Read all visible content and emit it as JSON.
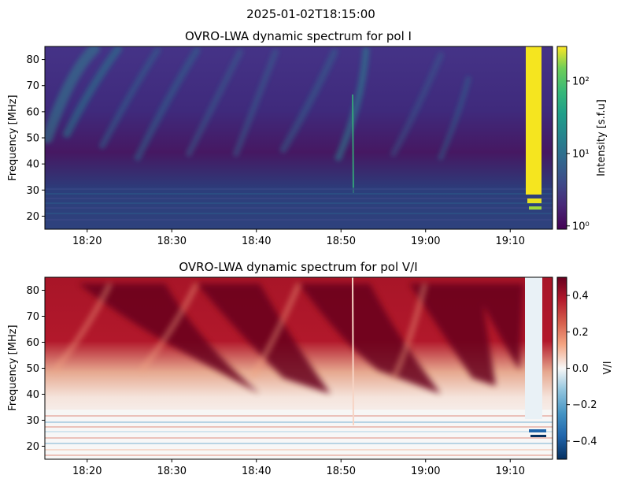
{
  "figure": {
    "suptitle": "2025-01-02T18:15:00"
  },
  "chart_data": [
    {
      "type": "heatmap",
      "title": "OVRO-LWA dynamic spectrum for pol I",
      "xlabel": "",
      "ylabel": "Frequency [MHz]",
      "x_range": [
        "18:15",
        "19:15"
      ],
      "xticks": [
        "18:20",
        "18:30",
        "18:40",
        "18:50",
        "19:00",
        "19:10"
      ],
      "ylim": [
        15,
        85
      ],
      "yticks": [
        20,
        30,
        40,
        50,
        60,
        70,
        80
      ],
      "colormap": "viridis",
      "colorbar": {
        "label": "Intensity [s.f.u]",
        "scale": "log",
        "range": [
          0.9,
          300
        ],
        "ticks": [
          "10⁰",
          "10¹",
          "10²"
        ]
      }
    },
    {
      "type": "heatmap",
      "title": "OVRO-LWA dynamic spectrum for pol V/I",
      "xlabel": "",
      "ylabel": "Frequency [MHz]",
      "x_range": [
        "18:15",
        "19:15"
      ],
      "xticks": [
        "18:20",
        "18:30",
        "18:40",
        "18:50",
        "19:00",
        "19:10"
      ],
      "ylim": [
        15,
        85
      ],
      "yticks": [
        20,
        30,
        40,
        50,
        60,
        70,
        80
      ],
      "colormap": "RdBu_r",
      "colorbar": {
        "label": "V/I",
        "scale": "linear",
        "range": [
          -0.5,
          0.5
        ],
        "ticks": [
          "−0.4",
          "−0.2",
          "0.0",
          "0.2",
          "0.4"
        ]
      }
    }
  ]
}
